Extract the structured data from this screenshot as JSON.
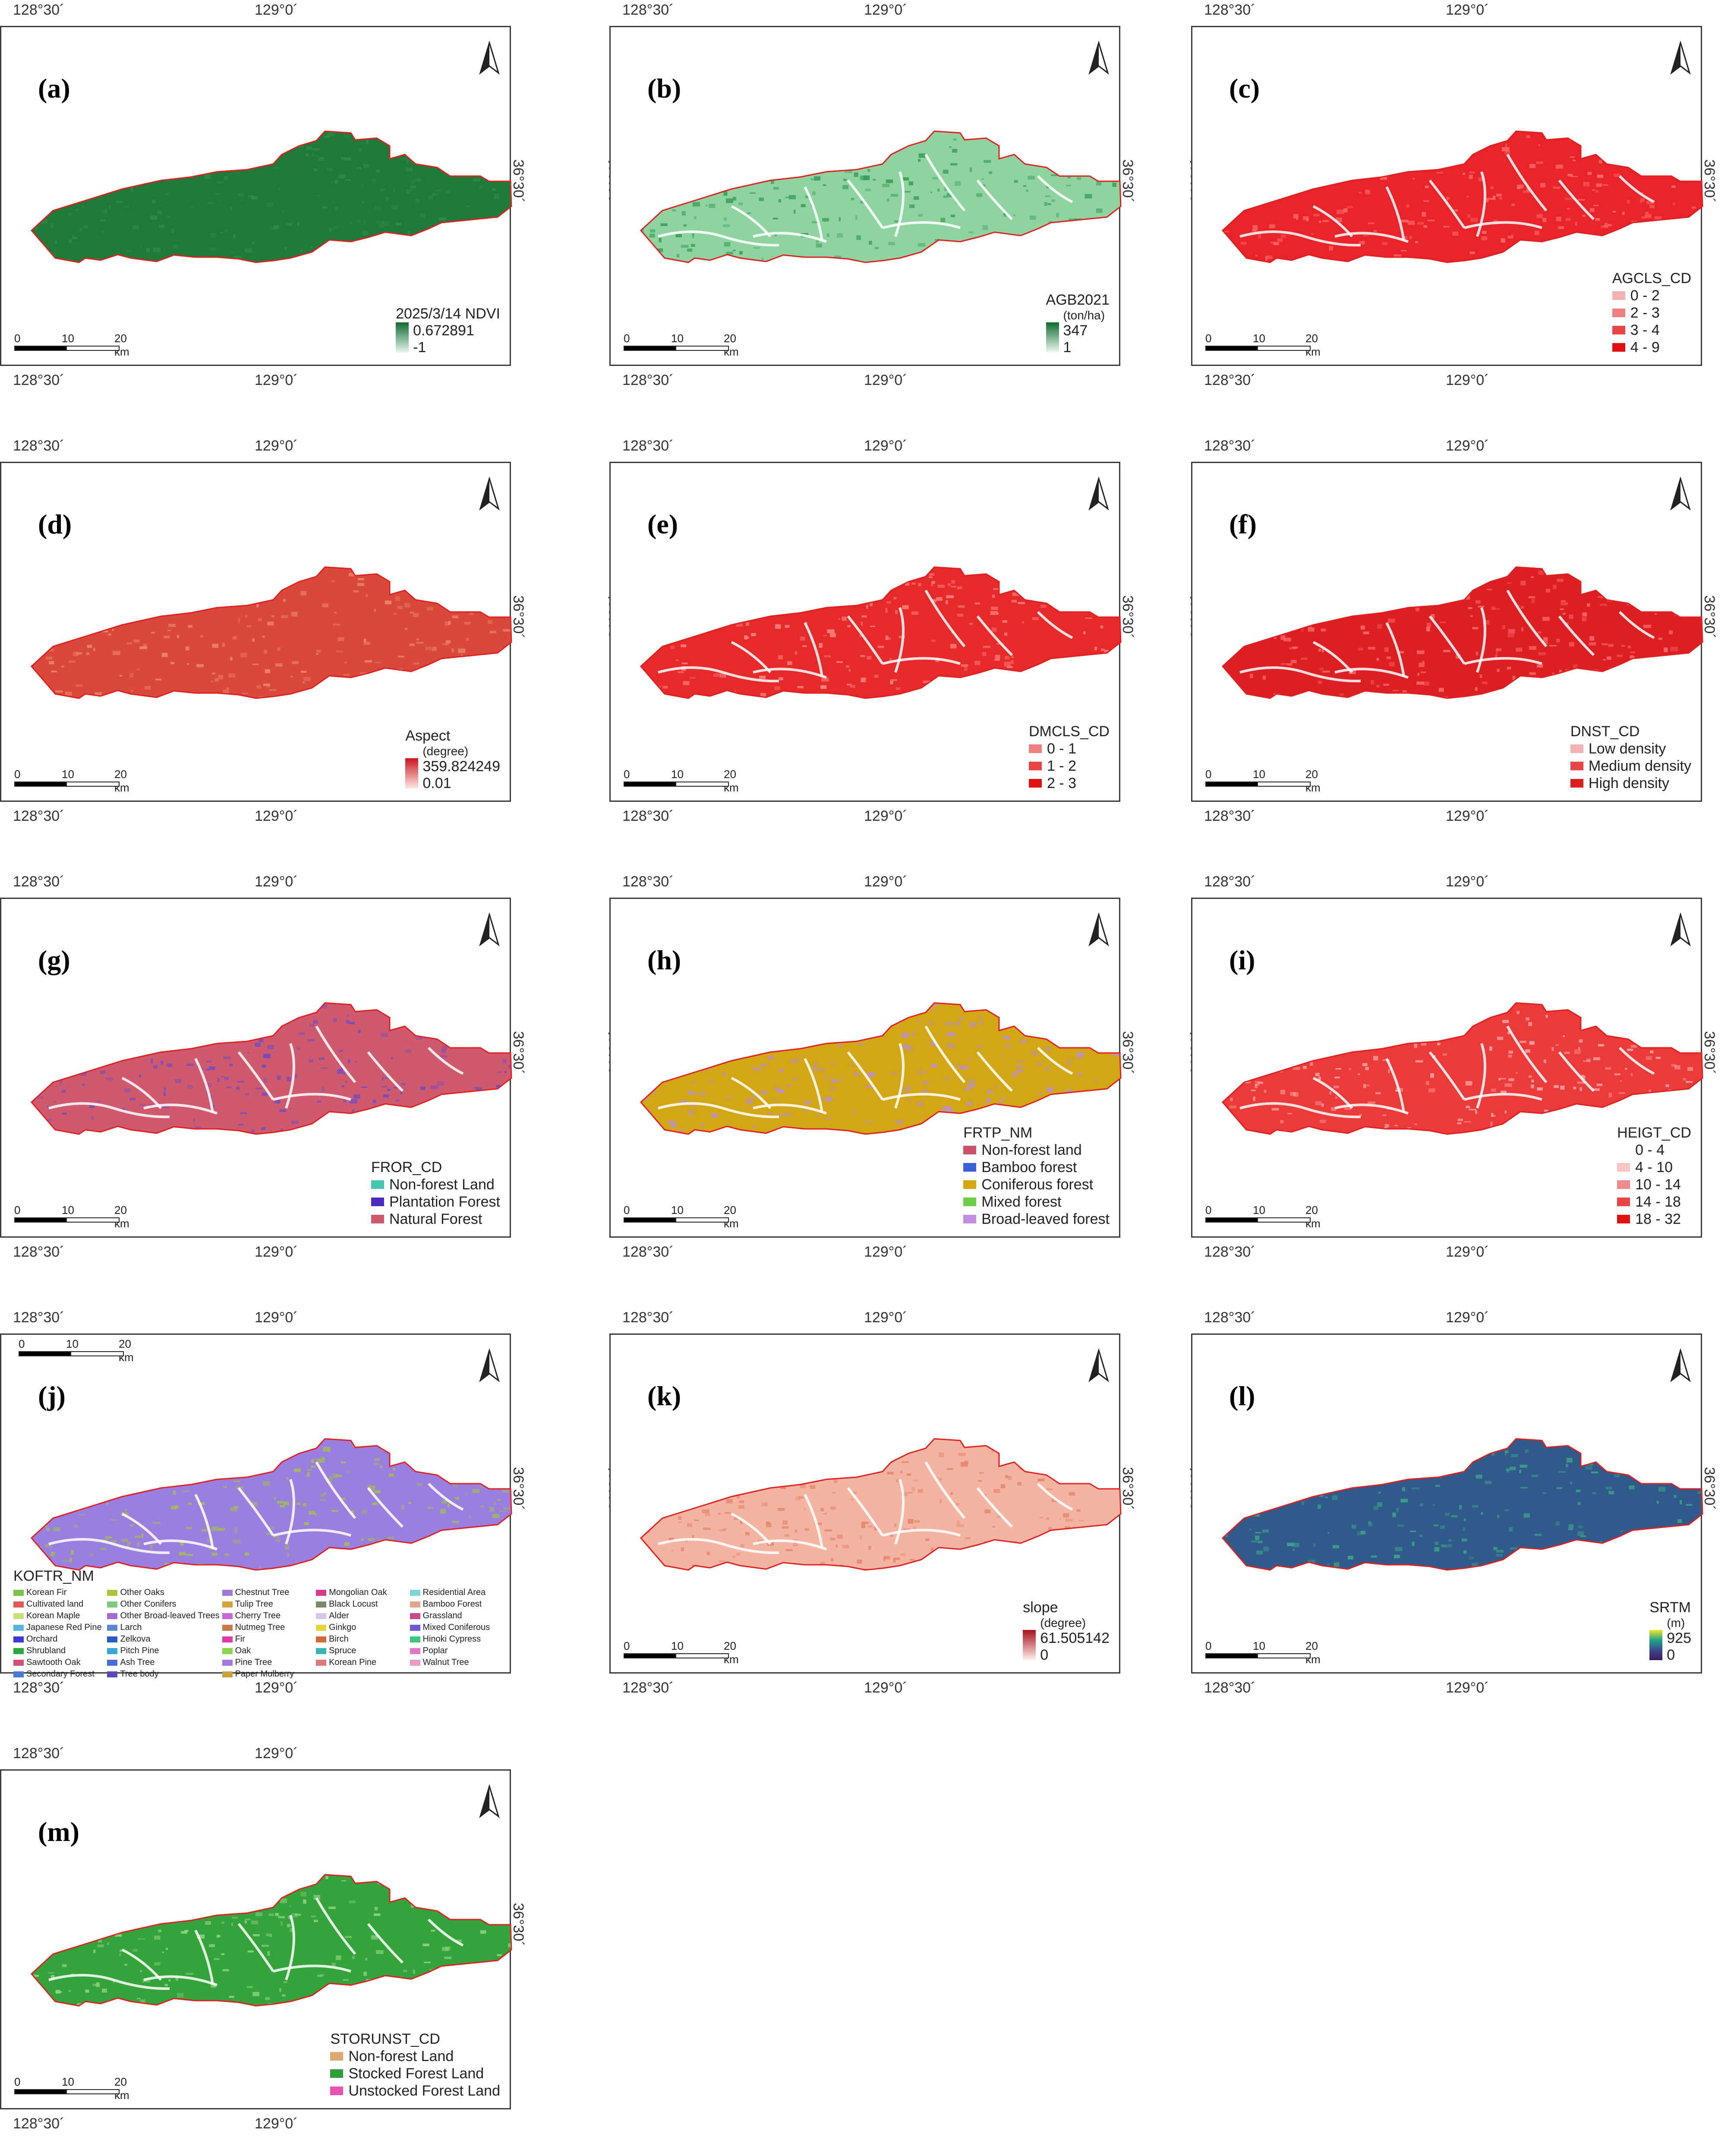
{
  "coords": {
    "lon_left": "128°30´",
    "lon_right": "129°0´",
    "lat": "36°30´"
  },
  "scale": {
    "t0": "0",
    "t1": "10",
    "t2": "20 km"
  },
  "panels": [
    {
      "id": "a",
      "label": "(a)",
      "fill": "#1f7a3a",
      "tex": "#2e8c4a",
      "legend": {
        "type": "gradient",
        "title": "2025/3/14 NDVI",
        "max": "0.672891",
        "min": "-1",
        "colors": [
          "#0f6a30",
          "#e9f6ec"
        ]
      }
    },
    {
      "id": "b",
      "label": "(b)",
      "fill": "#8fd3a0",
      "tex": "#2f9a52",
      "legend": {
        "type": "gradient",
        "title": "AGB2021",
        "subtitle": "(ton/ha)",
        "max": "347",
        "min": "1",
        "colors": [
          "#0d6b2e",
          "#f1faf3"
        ]
      }
    },
    {
      "id": "c",
      "label": "(c)",
      "fill": "#e8232a",
      "tex": "#ff6f6f",
      "legend": {
        "type": "classes",
        "title": "AGCLS_CD",
        "items": [
          {
            "label": "0 - 2",
            "color": "#f5b2b2"
          },
          {
            "label": "2 - 3",
            "color": "#f08080"
          },
          {
            "label": "3 - 4",
            "color": "#e84545"
          },
          {
            "label": "4 - 9",
            "color": "#e01010"
          }
        ]
      }
    },
    {
      "id": "d",
      "label": "(d)",
      "fill": "#d9493a",
      "tex": "#f08a70",
      "legend": {
        "type": "gradient",
        "title": "Aspect",
        "subtitle": "(degree)",
        "max": "359.824249",
        "min": "0.01",
        "colors": [
          "#c8161c",
          "#fde8e3"
        ]
      }
    },
    {
      "id": "e",
      "label": "(e)",
      "fill": "#e62a2a",
      "tex": "#ff8a8a",
      "legend": {
        "type": "classes",
        "title": "DMCLS_CD",
        "items": [
          {
            "label": "0 - 1",
            "color": "#f08080"
          },
          {
            "label": "1 - 2",
            "color": "#ea4545"
          },
          {
            "label": "2 - 3",
            "color": "#e01010"
          }
        ]
      }
    },
    {
      "id": "f",
      "label": "(f)",
      "fill": "#dc1f22",
      "tex": "#ff7070",
      "legend": {
        "type": "classes",
        "title": "DNST_CD",
        "items": [
          {
            "label": "Low density",
            "color": "#f5b2b2"
          },
          {
            "label": "Medium density",
            "color": "#e84545"
          },
          {
            "label": "High density",
            "color": "#d92020"
          }
        ]
      }
    },
    {
      "id": "g",
      "label": "(g)",
      "fill": "#cf5a6e",
      "tex": "#6a4ac8",
      "legend": {
        "type": "classes",
        "title": "FROR_CD",
        "items": [
          {
            "label": "Non-forest Land",
            "color": "#47c7b0"
          },
          {
            "label": "Plantation Forest",
            "color": "#4a2bc2"
          },
          {
            "label": "Natural Forest",
            "color": "#cf5a6e"
          }
        ]
      }
    },
    {
      "id": "h",
      "label": "(h)",
      "fill": "#d2a614",
      "tex": "#b68ee0",
      "legend": {
        "type": "classes",
        "title": "FRTP_NM",
        "items": [
          {
            "label": "Non-forest land",
            "color": "#c8516b"
          },
          {
            "label": "Bamboo forest",
            "color": "#3b5fd6"
          },
          {
            "label": "Coniferous forest",
            "color": "#d4a612"
          },
          {
            "label": "Mixed forest",
            "color": "#6ccf4b"
          },
          {
            "label": "Broad-leaved forest",
            "color": "#c28ee3"
          }
        ]
      }
    },
    {
      "id": "i",
      "label": "(i)",
      "fill": "#ea3a3a",
      "tex": "#ffb0b0",
      "legend": {
        "type": "classes",
        "title": "HEIGT_CD",
        "items": [
          {
            "label": "0 - 4",
            "color": "#ffffff"
          },
          {
            "label": "4 - 10",
            "color": "#f8c4c4"
          },
          {
            "label": "10 - 14",
            "color": "#f08a8a"
          },
          {
            "label": "14 - 18",
            "color": "#e84545"
          },
          {
            "label": "18 - 32",
            "color": "#e01010"
          }
        ]
      }
    },
    {
      "id": "j",
      "label": "(j)",
      "fill": "#9a7ee0",
      "tex": "#9fc34a",
      "legend": {
        "type": "koftr",
        "title": "KOFTR_NM",
        "items": [
          {
            "label": "Korean Fir",
            "color": "#7ac24a"
          },
          {
            "label": "Other Oaks",
            "color": "#a8c83c"
          },
          {
            "label": "Chestnut Tree",
            "color": "#9d7ad8"
          },
          {
            "label": "Mongolian Oak",
            "color": "#d63b8e"
          },
          {
            "label": "Residential Area",
            "color": "#7fd6d6"
          },
          {
            "label": "Cultivated land",
            "color": "#e45a5a"
          },
          {
            "label": "Other Conifers",
            "color": "#7fc87f"
          },
          {
            "label": "Tulip Tree",
            "color": "#d4a23c"
          },
          {
            "label": "Black Locust",
            "color": "#7a8a6a"
          },
          {
            "label": "Bamboo Forest",
            "color": "#e0a58a"
          },
          {
            "label": "Korean Maple",
            "color": "#c8e07a"
          },
          {
            "label": "Other Broad-leaved Trees",
            "color": "#a56ad6"
          },
          {
            "label": "Cherry Tree",
            "color": "#c86ad6"
          },
          {
            "label": "Alder",
            "color": "#d6c8e8"
          },
          {
            "label": "Grassland",
            "color": "#c84a8a"
          },
          {
            "label": "Japanese Red Pine",
            "color": "#5ab4e0"
          },
          {
            "label": "Larch",
            "color": "#5a8ad6"
          },
          {
            "label": "Nutmeg Tree",
            "color": "#c87a4a"
          },
          {
            "label": "Ginkgo",
            "color": "#e8d43c"
          },
          {
            "label": "Mixed Coniferous",
            "color": "#6a5ad6"
          },
          {
            "label": "Orchard",
            "color": "#3a3ad6"
          },
          {
            "label": "Zelkova",
            "color": "#2a5ac8"
          },
          {
            "label": "Fir",
            "color": "#e03aa8"
          },
          {
            "label": "Birch",
            "color": "#d46a3a"
          },
          {
            "label": "Hinoki Cypress",
            "color": "#3ac87a"
          },
          {
            "label": "Shrubland",
            "color": "#2aa83a"
          },
          {
            "label": "Pitch Pine",
            "color": "#3aa8d6"
          },
          {
            "label": "Oak",
            "color": "#8ad64a"
          },
          {
            "label": "Spruce",
            "color": "#3ab4b4"
          },
          {
            "label": "Poplar",
            "color": "#e07ac8"
          },
          {
            "label": "Sawtooth Oak",
            "color": "#d6507a"
          },
          {
            "label": "Ash Tree",
            "color": "#4a6ad6"
          },
          {
            "label": "Pine Tree",
            "color": "#a27ae0"
          },
          {
            "label": "Korean Pine",
            "color": "#e07a7a"
          },
          {
            "label": "Walnut Tree",
            "color": "#e89ac8"
          },
          {
            "label": "Secondary Forest",
            "color": "#4a7ad6"
          },
          {
            "label": "Tree body",
            "color": "#5a4ab4"
          },
          {
            "label": "Paper Mulberry",
            "color": "#c8a23c"
          }
        ]
      }
    },
    {
      "id": "k",
      "label": "(k)",
      "fill": "#f3b4a2",
      "tex": "#e6826a",
      "legend": {
        "type": "gradient",
        "title": "slope",
        "subtitle": "(degree)",
        "max": "61.505142",
        "min": "0",
        "colors": [
          "#a8101c",
          "#fff1ec"
        ]
      }
    },
    {
      "id": "l",
      "label": "(l)",
      "fill": "#2f5a8a",
      "tex": "#3fa88a",
      "legend": {
        "type": "gradient",
        "title": "SRTM",
        "subtitle": "(m)",
        "max": "925",
        "min": "0",
        "colors": [
          "#f2e62a",
          "#20a486",
          "#3a4c8c",
          "#3d1a5c"
        ]
      }
    },
    {
      "id": "m",
      "label": "(m)",
      "fill": "#33a33a",
      "tex": "#9ad68a",
      "legend": {
        "type": "classes",
        "title": "STORUNST_CD",
        "items": [
          {
            "label": "Non-forest Land",
            "color": "#e0a873"
          },
          {
            "label": "Stocked Forest Land",
            "color": "#2f9e3a"
          },
          {
            "label": "Unstocked Forest Land",
            "color": "#e852b0"
          }
        ]
      }
    }
  ]
}
